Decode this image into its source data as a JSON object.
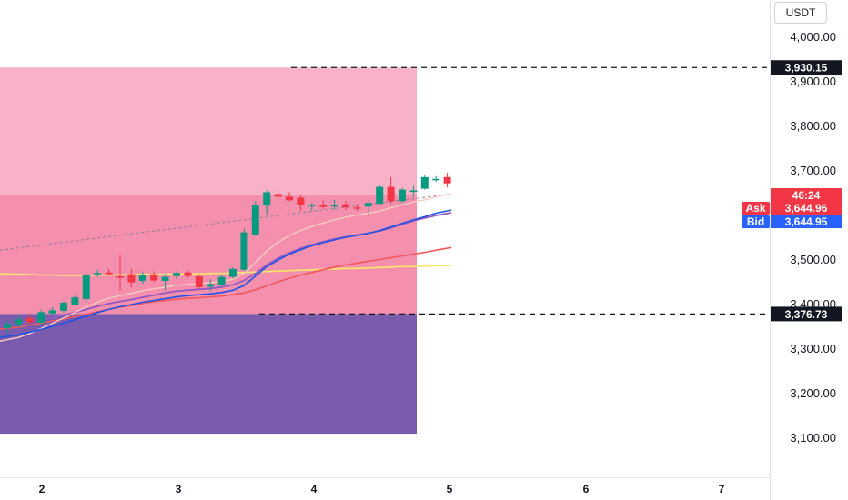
{
  "currency": "USDT",
  "chart_data": {
    "type": "candlestick",
    "y_ticks": [
      "4,000.00",
      "3,900.00",
      "3,800.00",
      "3,700.00",
      "3,500.00",
      "3,400.00",
      "3,300.00",
      "3,200.00",
      "3,100.00"
    ],
    "x_ticks": [
      "2",
      "3",
      "4",
      "5",
      "6",
      "7"
    ],
    "ylim": [
      3050,
      4070
    ],
    "candles": [
      {
        "o": 3345,
        "h": 3362,
        "l": 3333,
        "c": 3355
      },
      {
        "o": 3352,
        "h": 3372,
        "l": 3347,
        "c": 3365
      },
      {
        "o": 3368,
        "h": 3378,
        "l": 3354,
        "c": 3358
      },
      {
        "o": 3357,
        "h": 3386,
        "l": 3352,
        "c": 3381
      },
      {
        "o": 3378,
        "h": 3392,
        "l": 3372,
        "c": 3385
      },
      {
        "o": 3384,
        "h": 3405,
        "l": 3380,
        "c": 3402
      },
      {
        "o": 3398,
        "h": 3418,
        "l": 3396,
        "c": 3414
      },
      {
        "o": 3410,
        "h": 3470,
        "l": 3404,
        "c": 3465
      },
      {
        "o": 3468,
        "h": 3475,
        "l": 3460,
        "c": 3469
      },
      {
        "o": 3470,
        "h": 3478,
        "l": 3465,
        "c": 3466
      },
      {
        "o": 3461,
        "h": 3508,
        "l": 3430,
        "c": 3460
      },
      {
        "o": 3466,
        "h": 3478,
        "l": 3436,
        "c": 3448
      },
      {
        "o": 3451,
        "h": 3472,
        "l": 3445,
        "c": 3465
      },
      {
        "o": 3466,
        "h": 3472,
        "l": 3448,
        "c": 3452
      },
      {
        "o": 3451,
        "h": 3466,
        "l": 3430,
        "c": 3460
      },
      {
        "o": 3462,
        "h": 3472,
        "l": 3456,
        "c": 3469
      },
      {
        "o": 3470,
        "h": 3474,
        "l": 3458,
        "c": 3462
      },
      {
        "o": 3461,
        "h": 3466,
        "l": 3434,
        "c": 3437
      },
      {
        "o": 3438,
        "h": 3454,
        "l": 3428,
        "c": 3444
      },
      {
        "o": 3443,
        "h": 3464,
        "l": 3438,
        "c": 3460
      },
      {
        "o": 3460,
        "h": 3482,
        "l": 3456,
        "c": 3478
      },
      {
        "o": 3476,
        "h": 3568,
        "l": 3474,
        "c": 3560
      },
      {
        "o": 3555,
        "h": 3630,
        "l": 3552,
        "c": 3622
      },
      {
        "o": 3620,
        "h": 3654,
        "l": 3600,
        "c": 3650
      },
      {
        "o": 3646,
        "h": 3654,
        "l": 3636,
        "c": 3640
      },
      {
        "o": 3640,
        "h": 3650,
        "l": 3630,
        "c": 3632
      },
      {
        "o": 3638,
        "h": 3646,
        "l": 3608,
        "c": 3622
      },
      {
        "o": 3619,
        "h": 3626,
        "l": 3609,
        "c": 3622
      },
      {
        "o": 3621,
        "h": 3632,
        "l": 3612,
        "c": 3617
      },
      {
        "o": 3618,
        "h": 3633,
        "l": 3611,
        "c": 3622
      },
      {
        "o": 3623,
        "h": 3630,
        "l": 3610,
        "c": 3616
      },
      {
        "o": 3616,
        "h": 3624,
        "l": 3608,
        "c": 3614
      },
      {
        "o": 3618,
        "h": 3632,
        "l": 3600,
        "c": 3626
      },
      {
        "o": 3624,
        "h": 3666,
        "l": 3622,
        "c": 3662
      },
      {
        "o": 3662,
        "h": 3684,
        "l": 3624,
        "c": 3630
      },
      {
        "o": 3630,
        "h": 3660,
        "l": 3626,
        "c": 3656
      },
      {
        "o": 3652,
        "h": 3664,
        "l": 3640,
        "c": 3654
      },
      {
        "o": 3658,
        "h": 3690,
        "l": 3656,
        "c": 3684
      },
      {
        "o": 3680,
        "h": 3686,
        "l": 3674,
        "c": 3680
      },
      {
        "o": 3684,
        "h": 3694,
        "l": 3661,
        "c": 3670
      }
    ],
    "moving_averages": [
      {
        "name": "",
        "color": "#f6e86a",
        "width": 1.6,
        "values": [
          3467,
          3466,
          3465,
          3464,
          3464,
          3463,
          3463,
          3463,
          3464,
          3464,
          3465,
          3465,
          3466,
          3466,
          3466,
          3467,
          3467,
          3467,
          3468,
          3468,
          3469,
          3470,
          3471,
          3472,
          3473,
          3474,
          3475,
          3476,
          3477,
          3478,
          3479,
          3479,
          3480,
          3481,
          3482,
          3483,
          3483,
          3484,
          3485,
          3486
        ]
      },
      {
        "name": "",
        "color": "#f0585e",
        "width": 1.6,
        "values": [
          3343,
          3347,
          3352,
          3356,
          3361,
          3366,
          3371,
          3376,
          3382,
          3387,
          3392,
          3396,
          3400,
          3404,
          3407,
          3410,
          3412,
          3413,
          3415,
          3417,
          3420,
          3424,
          3431,
          3440,
          3449,
          3457,
          3464,
          3470,
          3476,
          3482,
          3487,
          3491,
          3495,
          3499,
          3503,
          3507,
          3511,
          3515,
          3520,
          3526
        ]
      },
      {
        "name": "",
        "color": "#9359c0",
        "width": 1.8,
        "values": [
          3350,
          3355,
          3359,
          3364,
          3369,
          3374,
          3380,
          3387,
          3394,
          3400,
          3405,
          3409,
          3414,
          3419,
          3424,
          3428,
          3430,
          3432,
          3434,
          3437,
          3442,
          3452,
          3468,
          3487,
          3502,
          3514,
          3524,
          3532,
          3539,
          3545,
          3550,
          3554,
          3558,
          3563,
          3570,
          3578,
          3586,
          3592,
          3598,
          3604
        ]
      },
      {
        "name": "",
        "color": "#ffcbc0",
        "width": 1.4,
        "values": [
          3316,
          3324,
          3333,
          3344,
          3356,
          3368,
          3380,
          3393,
          3403,
          3412,
          3418,
          3423,
          3429,
          3433,
          3437,
          3441,
          3443,
          3445,
          3447,
          3450,
          3455,
          3468,
          3492,
          3518,
          3538,
          3553,
          3564,
          3573,
          3581,
          3588,
          3594,
          3599,
          3603,
          3608,
          3615,
          3622,
          3628,
          3633,
          3640,
          3647
        ]
      },
      {
        "name": "",
        "color": "#1e53e5",
        "width": 1.6,
        "values": [
          3324,
          3330,
          3336,
          3342,
          3349,
          3356,
          3364,
          3372,
          3380,
          3387,
          3393,
          3398,
          3403,
          3407,
          3411,
          3415,
          3418,
          3420,
          3422,
          3425,
          3430,
          3441,
          3462,
          3483,
          3498,
          3511,
          3521,
          3530,
          3537,
          3543,
          3549,
          3553,
          3558,
          3564,
          3572,
          3580,
          3588,
          3595,
          3603,
          3610
        ]
      }
    ],
    "zones": [
      {
        "name": "",
        "from": 3930.15,
        "to": 3645,
        "color": "#f8b2c7"
      },
      {
        "name": "",
        "from": 3645,
        "to": 3376.73,
        "color": "#f490ae"
      },
      {
        "name": "",
        "from": 3376.73,
        "to": 3108,
        "color": "#7b5bae"
      }
    ],
    "trendline": {
      "color": "#8a7a9a",
      "from_price": 3520,
      "to_price": 3645
    },
    "levels": [
      {
        "price": 3930.15,
        "label": "3,930.15"
      },
      {
        "price": 3376.73,
        "label": "3,376.73"
      }
    ],
    "price_tags": {
      "last": {
        "label": "46:24",
        "color": "#f23645"
      },
      "ask": {
        "name": "Ask",
        "label": "3,644.96",
        "color": "#f23645"
      },
      "bid": {
        "name": "Bid",
        "label": "3,644.95",
        "color": "#2962ff"
      }
    }
  }
}
